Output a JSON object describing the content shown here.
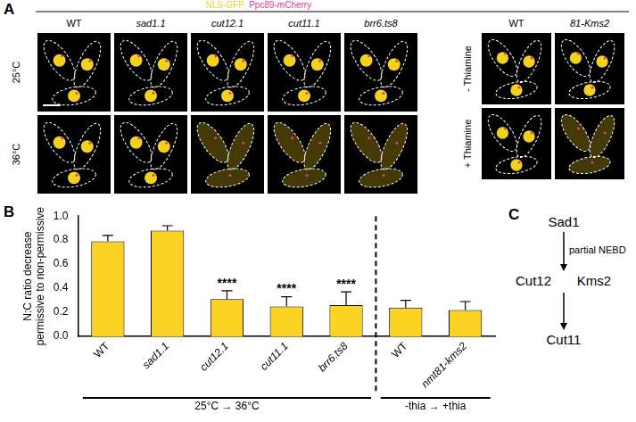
{
  "panel_a": {
    "label": "A",
    "channels": [
      {
        "name": "NLS-GFP",
        "color": "#f2d21b"
      },
      {
        "name": "Ppc89-mCherry",
        "color": "#e0389c"
      }
    ],
    "blocks": [
      {
        "columns": [
          "WT",
          "sad1.1",
          "cut12.1",
          "cut11.1",
          "brr6.ts8"
        ],
        "rows": [
          "25°C",
          "36°C"
        ]
      },
      {
        "columns": [
          "WT",
          "81-Kms2"
        ],
        "rows": [
          "- Thiamine",
          "+ Thiamine"
        ]
      }
    ]
  },
  "chart_data": {
    "type": "bar",
    "panel_label": "B",
    "ylabel": [
      "N:C ratio decrease",
      "permissive to non-permissive"
    ],
    "categories": [
      "WT",
      "sad1.1",
      "cut12.1",
      "cut11.1",
      "brr6.ts8",
      "WT",
      "nmt81-kms2"
    ],
    "values": [
      0.79,
      0.88,
      0.31,
      0.25,
      0.26,
      0.24,
      0.22
    ],
    "errors": [
      0.05,
      0.04,
      0.07,
      0.08,
      0.11,
      0.06,
      0.07
    ],
    "significance": [
      null,
      null,
      "****",
      "****",
      "****",
      null,
      null
    ],
    "groups": [
      {
        "label": "25°C → 36°C",
        "categories": [
          "WT",
          "sad1.1",
          "cut12.1",
          "cut11.1",
          "brr6.ts8"
        ]
      },
      {
        "label": "-thia → +thia",
        "categories": [
          "WT",
          "nmt81-kms2"
        ]
      }
    ],
    "color": "#fcd223",
    "ylim": [
      0,
      1.0
    ],
    "yticks": [
      {
        "value": 0,
        "label": "0.0"
      },
      {
        "value": 0.2,
        "label": "0.2"
      },
      {
        "value": 0.4,
        "label": "0.4"
      },
      {
        "value": 0.6,
        "label": "0.6"
      },
      {
        "value": 0.8,
        "label": "0.8"
      },
      {
        "value": 1.0,
        "label": "1.0"
      }
    ],
    "grid": false
  },
  "panel_c": {
    "label": "C",
    "top": "Sad1",
    "middle": [
      "Cut12",
      "Kms2"
    ],
    "bottom": "Cut11",
    "upper_arrow_label": "partial NEBD"
  }
}
